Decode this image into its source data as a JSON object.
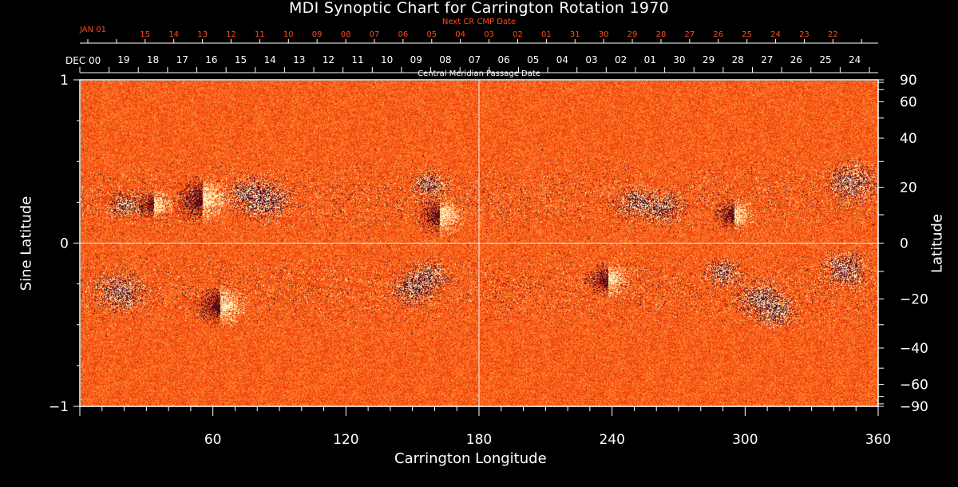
{
  "chart_data": {
    "type": "heatmap",
    "title": "MDI Synoptic Chart for Carrington Rotation 1970",
    "xlabel": "Carrington Longitude",
    "ylabel_left": "Sine Latitude",
    "ylabel_right": "Latitude",
    "xlim": [
      0,
      360
    ],
    "ylim": [
      -1,
      1
    ],
    "x_ticks": [
      "60",
      "120",
      "180",
      "240",
      "300",
      "360"
    ],
    "y_ticks_left": [
      "1",
      "0",
      "−1"
    ],
    "y_ticks_right": [
      "90",
      "60",
      "40",
      "20",
      "0",
      "−20",
      "−40",
      "−60",
      "−90"
    ],
    "cmp_axis_label": "Central Meridian Passage Date",
    "cmp_start_label": "DEC 00",
    "cmp_dates": [
      "19",
      "18",
      "17",
      "16",
      "15",
      "14",
      "13",
      "12",
      "11",
      "10",
      "09",
      "08",
      "07",
      "06",
      "05",
      "04",
      "03",
      "02",
      "01",
      "30",
      "29",
      "28",
      "27",
      "26",
      "25",
      "24"
    ],
    "next_cr_label": "Next CR CMP Date",
    "next_start_label": "JAN 01",
    "next_dates": [
      "15",
      "14",
      "13",
      "12",
      "11",
      "10",
      "09",
      "08",
      "07",
      "06",
      "05",
      "04",
      "03",
      "02",
      "01",
      "31",
      "30",
      "29",
      "28",
      "27",
      "26",
      "25",
      "24",
      "23",
      "22"
    ],
    "colorscale": [
      "#10062e",
      "#c01000",
      "#ff5a14",
      "#ffd060",
      "#fffde0"
    ],
    "active_regions": [
      {
        "lon": 20,
        "sinlat": 0.24,
        "polarity": "negative"
      },
      {
        "lon": 33,
        "sinlat": 0.24,
        "polarity": "mixed"
      },
      {
        "lon": 55,
        "sinlat": 0.27,
        "polarity": "mixed"
      },
      {
        "lon": 76,
        "sinlat": 0.3,
        "polarity": "negative"
      },
      {
        "lon": 84,
        "sinlat": 0.26,
        "polarity": "negative"
      },
      {
        "lon": 162,
        "sinlat": 0.17,
        "polarity": "mixed"
      },
      {
        "lon": 158,
        "sinlat": 0.36,
        "polarity": "negative"
      },
      {
        "lon": 251,
        "sinlat": 0.25,
        "polarity": "negative"
      },
      {
        "lon": 263,
        "sinlat": 0.22,
        "polarity": "negative"
      },
      {
        "lon": 295,
        "sinlat": 0.18,
        "polarity": "mixed"
      },
      {
        "lon": 348,
        "sinlat": 0.38,
        "polarity": "negative"
      },
      {
        "lon": 63,
        "sinlat": -0.38,
        "polarity": "mixed"
      },
      {
        "lon": 18,
        "sinlat": -0.3,
        "polarity": "negative"
      },
      {
        "lon": 150,
        "sinlat": -0.28,
        "polarity": "negative"
      },
      {
        "lon": 157,
        "sinlat": -0.2,
        "polarity": "negative"
      },
      {
        "lon": 238,
        "sinlat": -0.22,
        "polarity": "mixed"
      },
      {
        "lon": 290,
        "sinlat": -0.18,
        "polarity": "negative"
      },
      {
        "lon": 307,
        "sinlat": -0.34,
        "polarity": "negative"
      },
      {
        "lon": 314,
        "sinlat": -0.42,
        "polarity": "negative"
      },
      {
        "lon": 345,
        "sinlat": -0.15,
        "polarity": "negative"
      }
    ]
  }
}
